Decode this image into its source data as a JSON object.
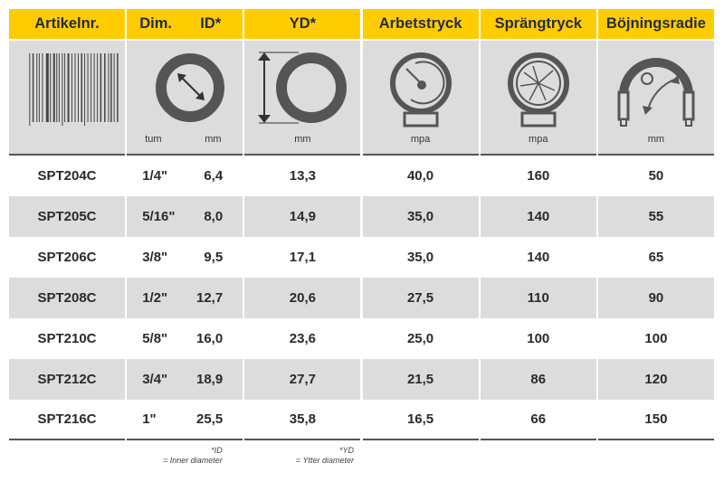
{
  "headers": {
    "artikel": "Artikelnr.",
    "dim": "Dim.",
    "id": "ID*",
    "yd": "YD*",
    "arbets": "Arbetstryck",
    "spräng": "Sprängtryck",
    "bojning": "Böjningsradie"
  },
  "units": {
    "tum": "tum",
    "id_mm": "mm",
    "yd": "mm",
    "arbets": "mpa",
    "spräng": "mpa",
    "bojning": "mm"
  },
  "icons": [
    "barcode-icon",
    "inner-diameter-icon",
    "outer-diameter-icon",
    "pressure-gauge-icon",
    "burst-gauge-icon",
    "bend-radius-icon"
  ],
  "rows": [
    {
      "art": "SPT204C",
      "tum": "1/4\"",
      "id": "6,4",
      "yd": "13,3",
      "arb": "40,0",
      "spr": "160",
      "boj": "50"
    },
    {
      "art": "SPT205C",
      "tum": "5/16\"",
      "id": "8,0",
      "yd": "14,9",
      "arb": "35,0",
      "spr": "140",
      "boj": "55"
    },
    {
      "art": "SPT206C",
      "tum": "3/8\"",
      "id": "9,5",
      "yd": "17,1",
      "arb": "35,0",
      "spr": "140",
      "boj": "65"
    },
    {
      "art": "SPT208C",
      "tum": "1/2\"",
      "id": "12,7",
      "yd": "20,6",
      "arb": "27,5",
      "spr": "110",
      "boj": "90"
    },
    {
      "art": "SPT210C",
      "tum": "5/8\"",
      "id": "16,0",
      "yd": "23,6",
      "arb": "25,0",
      "spr": "100",
      "boj": "100"
    },
    {
      "art": "SPT212C",
      "tum": "3/4\"",
      "id": "18,9",
      "yd": "27,7",
      "arb": "21,5",
      "spr": "86",
      "boj": "120"
    },
    {
      "art": "SPT216C",
      "tum": "1\"",
      "id": "25,5",
      "yd": "35,8",
      "arb": "16,5",
      "spr": "66",
      "boj": "150"
    }
  ],
  "footnotes": {
    "id_label": "*ID",
    "id_text": "= Inner diameter",
    "yd_label": "*YD",
    "yd_text": "= Ytter diameter"
  },
  "colors": {
    "header": "#ffcc00",
    "stripe": "#dcdcdc"
  }
}
